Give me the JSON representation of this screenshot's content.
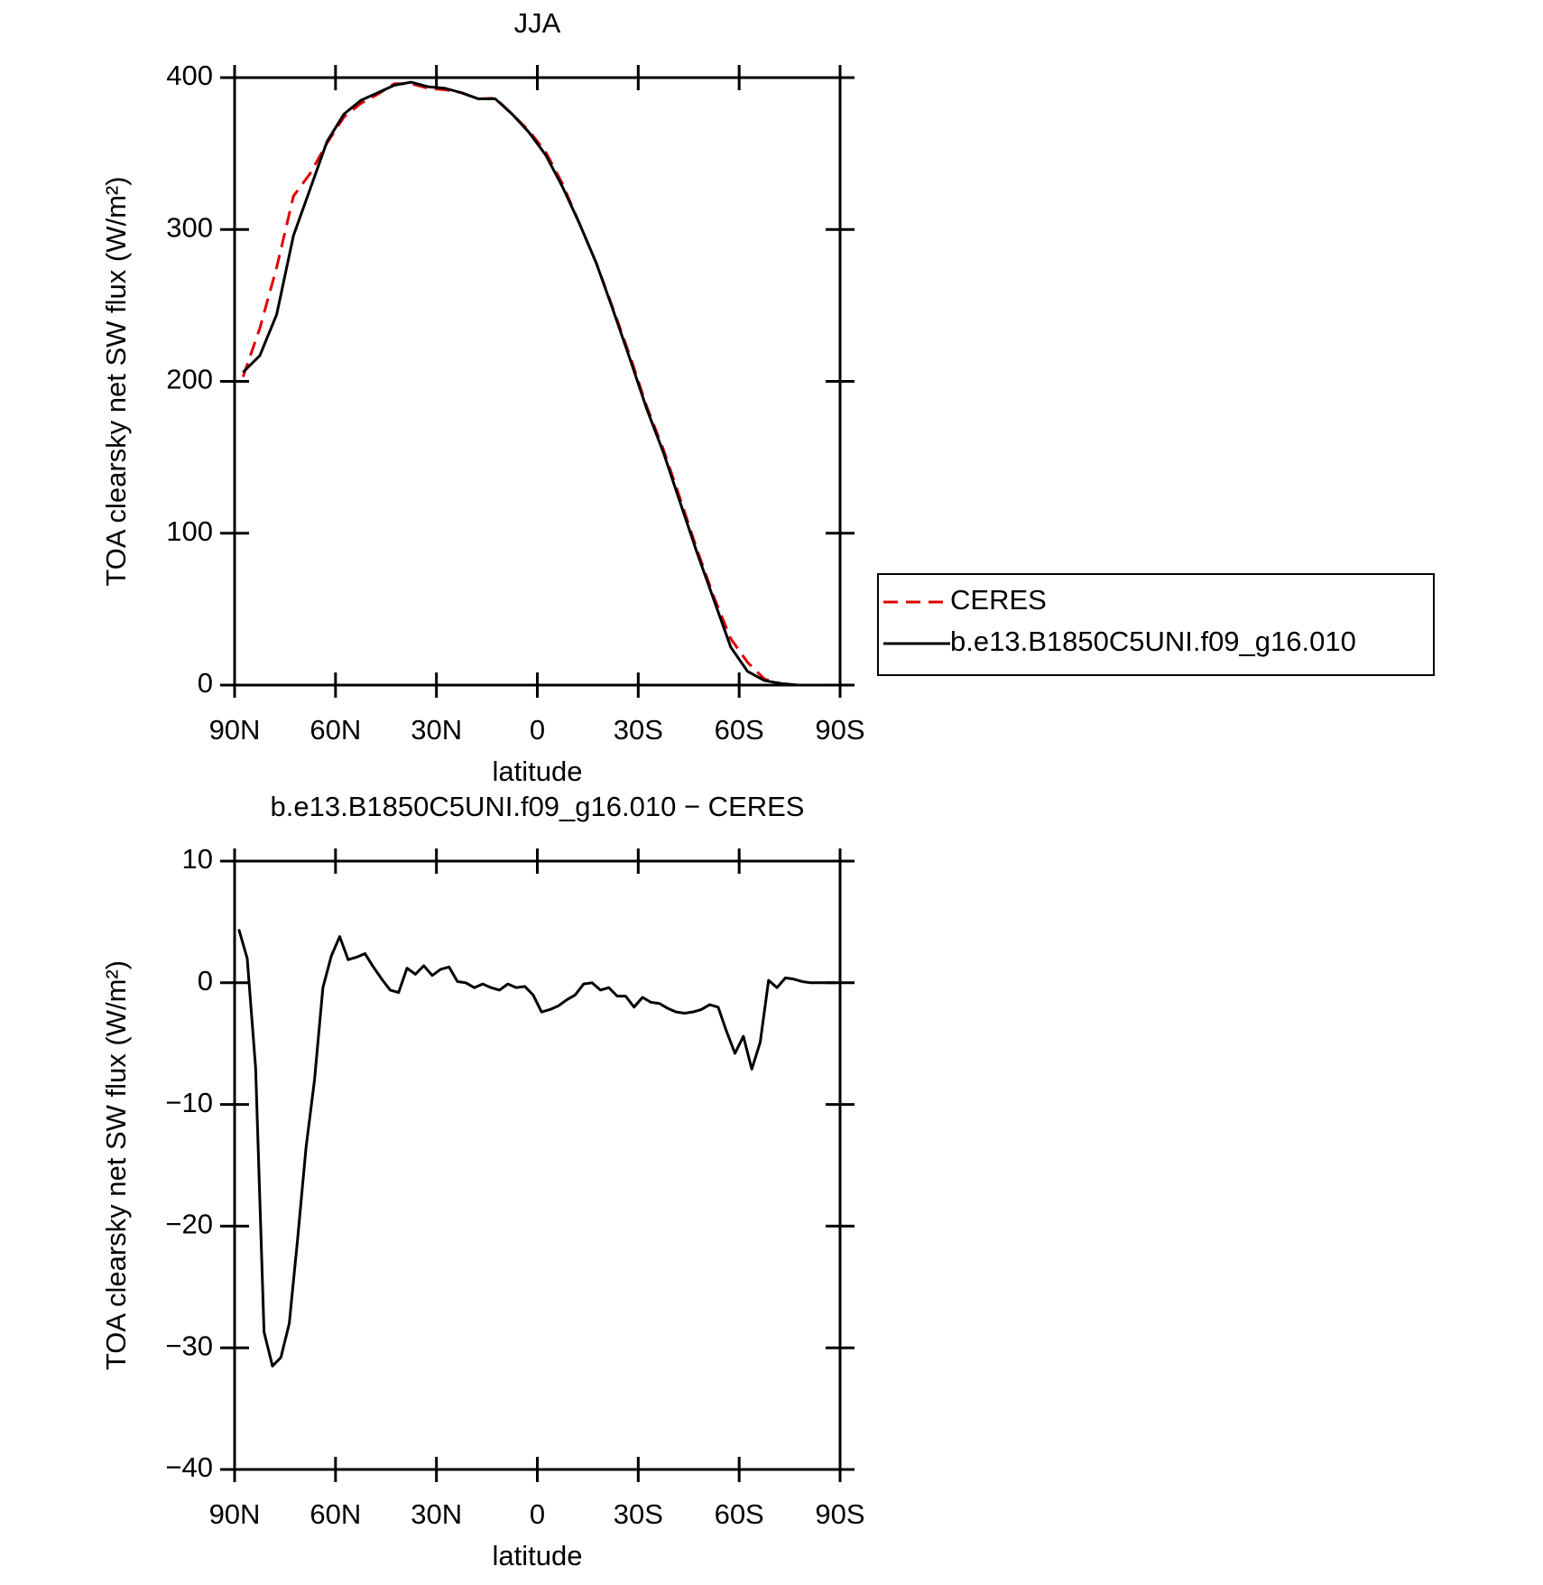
{
  "chart_data": [
    {
      "type": "line",
      "title": "JJA",
      "xlabel": "latitude",
      "ylabel": "TOA clearsky net SW flux (W/m²)",
      "x": [
        87.5,
        82.5,
        77.5,
        72.5,
        67.5,
        62.5,
        57.5,
        52.5,
        47.5,
        42.5,
        37.5,
        32.5,
        27.5,
        22.5,
        17.5,
        12.5,
        7.5,
        2.5,
        -2.5,
        -7.5,
        -12.5,
        -17.5,
        -22.5,
        -27.5,
        -32.5,
        -37.5,
        -42.5,
        -47.5,
        -52.5,
        -57.5,
        -62.5,
        -67.5,
        -72.5,
        -77.5,
        -82.5,
        -87.5
      ],
      "series": [
        {
          "name": "CERES",
          "color": "#e00000",
          "style": "dashed",
          "values": [
            203,
            235,
            275,
            322,
            337,
            357,
            374,
            383,
            389,
            396,
            396,
            393,
            392,
            390,
            386,
            386.5,
            376,
            365,
            351,
            330,
            304,
            278,
            248,
            217,
            183.5,
            155,
            122.5,
            89,
            58,
            30.5,
            15,
            4,
            1,
            0,
            0,
            0
          ]
        },
        {
          "name": "b.e13.B1850C5UNI.f09_g16.010",
          "color": "#000000",
          "style": "solid",
          "values": [
            206,
            217,
            244,
            296,
            327,
            358,
            376,
            385,
            390,
            395,
            397,
            394,
            393,
            390,
            386,
            386,
            376,
            364,
            349,
            328,
            304,
            278,
            247,
            215,
            182,
            153,
            120,
            87,
            56,
            25,
            9,
            3,
            1,
            0,
            0,
            0
          ]
        }
      ],
      "xlim": [
        90,
        -90
      ],
      "xticks": [
        {
          "value": 90,
          "label": "90N"
        },
        {
          "value": 60,
          "label": "60N"
        },
        {
          "value": 30,
          "label": "30N"
        },
        0,
        {
          "value": -30,
          "label": "30S"
        },
        {
          "value": -60,
          "label": "60S"
        },
        {
          "value": -90,
          "label": "90S"
        }
      ],
      "ylim": [
        0,
        400
      ],
      "yticks": [
        0,
        100,
        200,
        300,
        400
      ],
      "legend": "right"
    },
    {
      "type": "line",
      "title": "b.e13.B1850C5UNI.f09_g16.010 − CERES",
      "xlabel": "latitude",
      "ylabel": "TOA clearsky net SW flux (W/m²)",
      "x": [
        88.75,
        86.25,
        83.75,
        81.25,
        78.75,
        76.25,
        73.75,
        71.25,
        68.75,
        66.25,
        63.75,
        61.25,
        58.75,
        56.25,
        53.75,
        51.25,
        48.75,
        46.25,
        43.75,
        41.25,
        38.75,
        36.25,
        33.75,
        31.25,
        28.75,
        26.25,
        23.75,
        21.25,
        18.75,
        16.25,
        13.75,
        11.25,
        8.75,
        6.25,
        3.75,
        1.25,
        -1.25,
        -3.75,
        -6.25,
        -8.75,
        -11.25,
        -13.75,
        -16.25,
        -18.75,
        -21.25,
        -23.75,
        -26.25,
        -28.75,
        -31.25,
        -33.75,
        -36.25,
        -38.75,
        -41.25,
        -43.75,
        -46.25,
        -48.75,
        -51.25,
        -53.75,
        -56.25,
        -58.75,
        -61.25,
        -63.75,
        -66.25,
        -68.75,
        -71.25,
        -73.75,
        -76.25,
        -78.75,
        -81.25,
        -83.75,
        -86.25,
        -88.75
      ],
      "values": [
        4.4,
        2,
        -7,
        -28.7,
        -31.5,
        -30.8,
        -28,
        -21,
        -13.5,
        -8,
        -0.4,
        2.2,
        3.8,
        1.9,
        2.1,
        2.4,
        1.3,
        0.3,
        -0.6,
        -0.8,
        1.2,
        0.7,
        1.4,
        0.6,
        1.1,
        1.3,
        0.1,
        0,
        -0.4,
        -0.1,
        -0.4,
        -0.6,
        -0.1,
        -0.4,
        -0.3,
        -1,
        -2.4,
        -2.2,
        -1.9,
        -1.4,
        -1,
        -0.1,
        0,
        -0.6,
        -0.4,
        -1.1,
        -1.1,
        -2,
        -1.2,
        -1.6,
        -1.7,
        -2.1,
        -2.4,
        -2.5,
        -2.4,
        -2.2,
        -1.8,
        -2,
        -4,
        -5.8,
        -4.4,
        -7.1,
        -4.9,
        0.2,
        -0.4,
        0.4,
        0.3,
        0.1,
        0,
        0,
        0,
        0
      ],
      "color": "#000000",
      "xlim": [
        90,
        -90
      ],
      "xticks": [
        {
          "value": 90,
          "label": "90N"
        },
        {
          "value": 60,
          "label": "60N"
        },
        {
          "value": 30,
          "label": "30N"
        },
        0,
        {
          "value": -30,
          "label": "30S"
        },
        {
          "value": -60,
          "label": "60S"
        },
        {
          "value": -90,
          "label": "90S"
        }
      ],
      "ylim": [
        -40,
        10
      ],
      "yticks": [
        {
          "value": -40,
          "label": "−40"
        },
        {
          "value": -30,
          "label": "−30"
        },
        {
          "value": -20,
          "label": "−20"
        },
        {
          "value": -10,
          "label": "−10"
        },
        0,
        10
      ]
    }
  ]
}
